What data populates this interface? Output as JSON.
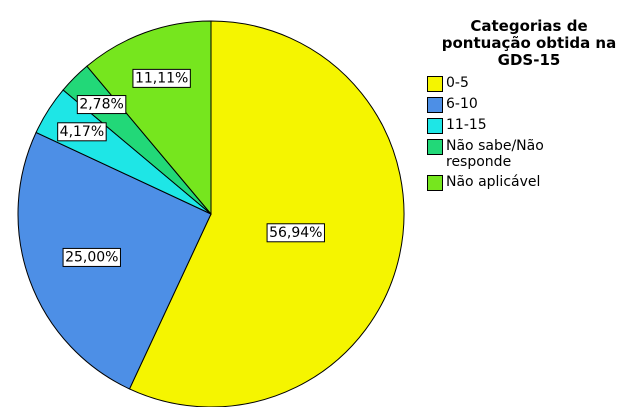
{
  "chart_data": {
    "type": "pie",
    "legend_title": "Categorias de pontuação obtida na GDS-15",
    "categories": [
      "0-5",
      "6-10",
      "11-15",
      "Não sabe/Não responde",
      "Não aplicável"
    ],
    "values": [
      56.94,
      25.0,
      4.17,
      2.78,
      11.11
    ],
    "value_labels": [
      "56,94%",
      "25,00%",
      "4,17%",
      "2,78%",
      "11,11%"
    ],
    "colors": [
      "#f5f500",
      "#4d8fe6",
      "#1ee6e6",
      "#22d878",
      "#76e61e"
    ],
    "legend": "right"
  }
}
